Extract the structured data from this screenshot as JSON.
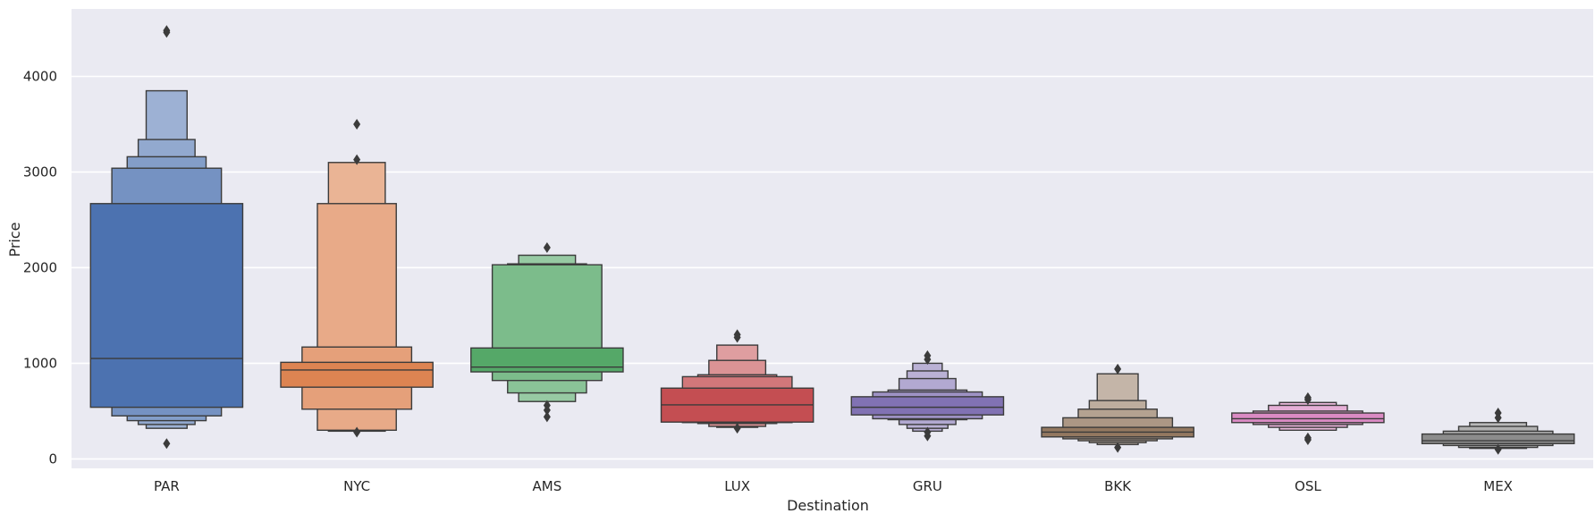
{
  "chart_data": {
    "type": "boxen",
    "title": "",
    "xlabel": "Destination",
    "ylabel": "Price",
    "ylim": [
      -110,
      4670
    ],
    "yticks": [
      0,
      1000,
      2000,
      3000,
      4000
    ],
    "grid": true,
    "background": "#eaeaf2",
    "categories": [
      "PAR",
      "NYC",
      "AMS",
      "LUX",
      "GRU",
      "BKK",
      "OSL",
      "MEX"
    ],
    "series": [
      {
        "category": "PAR",
        "color": "#4c72b0",
        "median": 1050,
        "boxes": [
          [
            540,
            2670
          ],
          [
            450,
            3040
          ],
          [
            400,
            3160
          ],
          [
            360,
            3340
          ],
          [
            320,
            3850
          ]
        ],
        "outliers": [
          4480,
          4460,
          160
        ]
      },
      {
        "category": "NYC",
        "color": "#dd8452",
        "median": 930,
        "boxes": [
          [
            750,
            1010
          ],
          [
            520,
            1170
          ],
          [
            300,
            2670
          ],
          [
            290,
            3100
          ]
        ],
        "outliers": [
          3500,
          3130,
          280
        ]
      },
      {
        "category": "AMS",
        "color": "#55a868",
        "median": 960,
        "boxes": [
          [
            910,
            1160
          ],
          [
            820,
            2030
          ],
          [
            690,
            2040
          ],
          [
            600,
            2130
          ]
        ],
        "outliers": [
          2210,
          560,
          510,
          440
        ]
      },
      {
        "category": "LUX",
        "color": "#c44e52",
        "median": 565,
        "boxes": [
          [
            385,
            740
          ],
          [
            380,
            860
          ],
          [
            370,
            880
          ],
          [
            340,
            1030
          ],
          [
            330,
            1190
          ]
        ],
        "outliers": [
          1300,
          1270,
          320
        ]
      },
      {
        "category": "GRU",
        "color": "#8172b3",
        "median": 540,
        "boxes": [
          [
            460,
            650
          ],
          [
            420,
            700
          ],
          [
            410,
            720
          ],
          [
            360,
            840
          ],
          [
            320,
            920
          ],
          [
            290,
            1000
          ]
        ],
        "outliers": [
          1080,
          1040,
          280,
          240
        ]
      },
      {
        "category": "BKK",
        "color": "#937860",
        "median": 280,
        "boxes": [
          [
            230,
            330
          ],
          [
            210,
            430
          ],
          [
            190,
            520
          ],
          [
            170,
            610
          ],
          [
            150,
            890
          ]
        ],
        "outliers": [
          940,
          120
        ]
      },
      {
        "category": "OSL",
        "color": "#da8bc3",
        "median": 420,
        "boxes": [
          [
            380,
            480
          ],
          [
            360,
            500
          ],
          [
            330,
            560
          ],
          [
            300,
            590
          ]
        ],
        "outliers": [
          640,
          620,
          220,
          200
        ]
      },
      {
        "category": "MEX",
        "color": "#8c8c8c",
        "median": 190,
        "boxes": [
          [
            160,
            260
          ],
          [
            140,
            290
          ],
          [
            120,
            340
          ],
          [
            110,
            380
          ]
        ],
        "outliers": [
          480,
          430,
          100
        ]
      }
    ]
  }
}
